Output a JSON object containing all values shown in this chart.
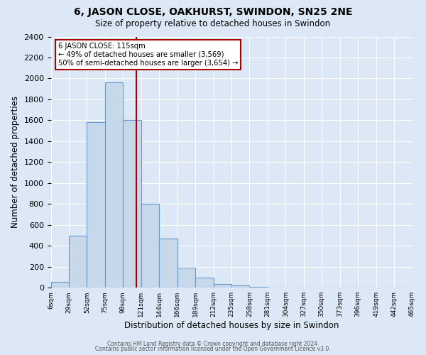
{
  "title": "6, JASON CLOSE, OAKHURST, SWINDON, SN25 2NE",
  "subtitle": "Size of property relative to detached houses in Swindon",
  "xlabel": "Distribution of detached houses by size in Swindon",
  "ylabel": "Number of detached properties",
  "bar_labels": [
    "6sqm",
    "29sqm",
    "52sqm",
    "75sqm",
    "98sqm",
    "121sqm",
    "144sqm",
    "166sqm",
    "189sqm",
    "212sqm",
    "235sqm",
    "258sqm",
    "281sqm",
    "304sqm",
    "327sqm",
    "350sqm",
    "373sqm",
    "396sqm",
    "419sqm",
    "442sqm",
    "465sqm"
  ],
  "bar_values": [
    55,
    500,
    1585,
    1960,
    1600,
    800,
    470,
    190,
    95,
    35,
    20,
    5,
    0,
    0,
    0,
    0,
    0,
    0,
    0,
    0
  ],
  "num_bins": 20,
  "bar_color": "#c8d8eb",
  "bar_edge_color": "#6699cc",
  "marker_after_bin": 4,
  "marker_color": "#aa0000",
  "annotation_text": "6 JASON CLOSE: 115sqm\n← 49% of detached houses are smaller (3,569)\n50% of semi-detached houses are larger (3,654) →",
  "annotation_box_color": "#ffffff",
  "annotation_box_edge": "#aa0000",
  "ylim": [
    0,
    2400
  ],
  "yticks": [
    0,
    200,
    400,
    600,
    800,
    1000,
    1200,
    1400,
    1600,
    1800,
    2000,
    2200,
    2400
  ],
  "background_color": "#dce8f5",
  "grid_color": "#ffffff",
  "footer_line1": "Contains HM Land Registry data © Crown copyright and database right 2024.",
  "footer_line2": "Contains public sector information licensed under the Open Government Licence v3.0."
}
